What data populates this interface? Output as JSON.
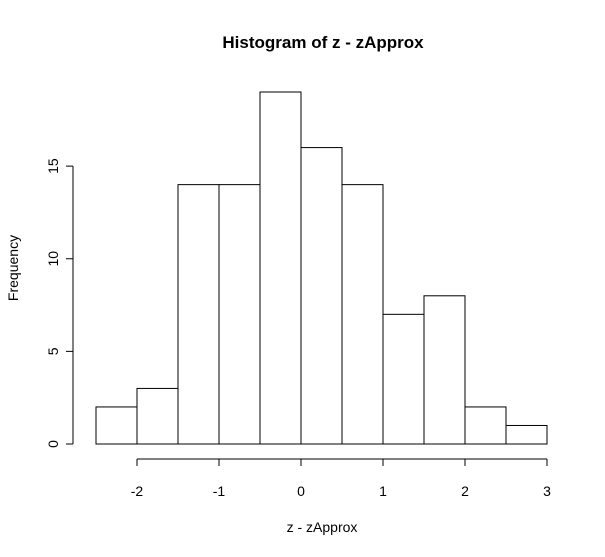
{
  "chart_data": {
    "type": "bar",
    "title": "Histogram of z - zApprox",
    "xlabel": "z - zApprox",
    "ylabel": "Frequency",
    "bins": [
      {
        "start": -2.5,
        "end": -2.0,
        "count": 2
      },
      {
        "start": -2.0,
        "end": -1.5,
        "count": 3
      },
      {
        "start": -1.5,
        "end": -1.0,
        "count": 14
      },
      {
        "start": -1.0,
        "end": -0.5,
        "count": 14
      },
      {
        "start": -0.5,
        "end": 0.0,
        "count": 19
      },
      {
        "start": 0.0,
        "end": 0.5,
        "count": 16
      },
      {
        "start": 0.5,
        "end": 1.0,
        "count": 14
      },
      {
        "start": 1.0,
        "end": 1.5,
        "count": 7
      },
      {
        "start": 1.5,
        "end": 2.0,
        "count": 8
      },
      {
        "start": 2.0,
        "end": 2.5,
        "count": 2
      },
      {
        "start": 2.5,
        "end": 3.0,
        "count": 1
      }
    ],
    "x_ticks": [
      -2,
      -1,
      0,
      1,
      2,
      3
    ],
    "x_tick_labels": [
      "-2",
      "-1",
      "0",
      "1",
      "2",
      "3"
    ],
    "y_ticks": [
      0,
      5,
      10,
      15
    ],
    "y_tick_labels": [
      "0",
      "5",
      "10",
      "15"
    ],
    "xlim": [
      -2.5,
      3.0
    ],
    "ylim": [
      0,
      19
    ],
    "grid": false,
    "legend": "none",
    "bar_fill": "#ffffff",
    "bar_stroke": "#000000"
  }
}
